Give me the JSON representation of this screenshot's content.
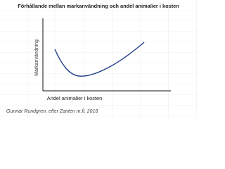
{
  "title": "Förhållande mellan markanvändning och andel animalier i kosten",
  "y_axis_label": "Markanvändning",
  "x_axis_label": "Andel animalier i kosten",
  "caption": "Gunnar Rundgren, efter Zanten m.fl. 2018"
}
